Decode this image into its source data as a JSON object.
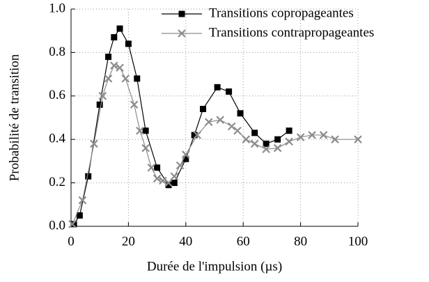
{
  "chart_data": {
    "type": "line",
    "xlabel": "Durée de l'impulsion (µs)",
    "ylabel": "Probabilité de transition",
    "xlim": [
      0,
      100
    ],
    "xticks": [
      0,
      20,
      40,
      60,
      80,
      100
    ],
    "ylim": [
      0,
      1
    ],
    "yticks": [
      {
        "value": 0,
        "label": "0.0"
      },
      0.2,
      0.4,
      0.6,
      0.8,
      {
        "value": 1,
        "label": "1.0"
      }
    ],
    "grid": true,
    "legend": "upper right",
    "series": [
      {
        "name": "Transitions copropageantes",
        "color": "#000000",
        "marker": "square",
        "x": [
          1,
          3,
          6,
          10,
          13,
          15,
          17,
          20,
          23,
          26,
          30,
          34,
          36,
          40,
          43,
          46,
          51,
          55,
          59,
          64,
          68,
          72,
          76
        ],
        "values": [
          0.01,
          0.05,
          0.23,
          0.56,
          0.78,
          0.87,
          0.91,
          0.84,
          0.68,
          0.44,
          0.27,
          0.19,
          0.2,
          0.31,
          0.42,
          0.54,
          0.64,
          0.62,
          0.52,
          0.43,
          0.38,
          0.4,
          0.44
        ]
      },
      {
        "name": "Transitions contrapropageantes",
        "color": "#8c8c8c",
        "marker": "cross",
        "x": [
          0.5,
          4,
          8,
          11,
          13,
          15,
          17,
          19,
          22,
          24,
          26,
          28,
          30,
          32,
          34,
          36,
          38,
          40,
          44,
          48,
          52,
          56,
          58,
          61,
          64,
          68,
          72,
          76,
          80,
          84,
          88,
          92,
          100
        ],
        "values": [
          0.01,
          0.12,
          0.38,
          0.6,
          0.68,
          0.74,
          0.73,
          0.68,
          0.56,
          0.44,
          0.36,
          0.27,
          0.22,
          0.21,
          0.2,
          0.23,
          0.28,
          0.33,
          0.42,
          0.48,
          0.49,
          0.46,
          0.44,
          0.4,
          0.38,
          0.355,
          0.36,
          0.39,
          0.41,
          0.42,
          0.42,
          0.4,
          0.4
        ]
      }
    ]
  }
}
